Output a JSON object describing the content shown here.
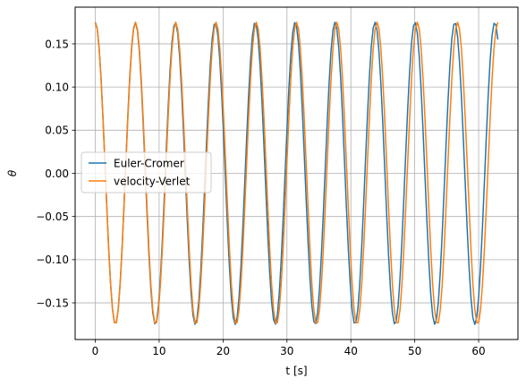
{
  "chart_data": {
    "type": "line",
    "xlabel": "t [s]",
    "ylabel": "θ",
    "xlim": [
      -3.15,
      66.15
    ],
    "ylim": [
      -0.1925,
      0.1925
    ],
    "x_ticks": [
      0,
      10,
      20,
      30,
      40,
      50,
      60
    ],
    "x_tick_labels": [
      "0",
      "10",
      "20",
      "30",
      "40",
      "50",
      "60"
    ],
    "y_ticks": [
      -0.15,
      -0.1,
      -0.05,
      0.0,
      0.05,
      0.1,
      0.15
    ],
    "y_tick_labels": [
      "−0.15",
      "−0.10",
      "−0.05",
      "0.00",
      "0.05",
      "0.10",
      "0.15"
    ],
    "grid": true,
    "legend_position": "center-left",
    "sampling": {
      "t_start": 0,
      "t_end": 63,
      "dt": 0.3
    },
    "series": [
      {
        "name": "Euler-Cromer",
        "color": "#1f77b4",
        "amplitude": 0.175,
        "period_s": 6.25,
        "phase": -0.02
      },
      {
        "name": "velocity-Verlet",
        "color": "#ff7f0e",
        "amplitude": 0.175,
        "period_s": 6.3,
        "phase": 0.0
      }
    ]
  }
}
